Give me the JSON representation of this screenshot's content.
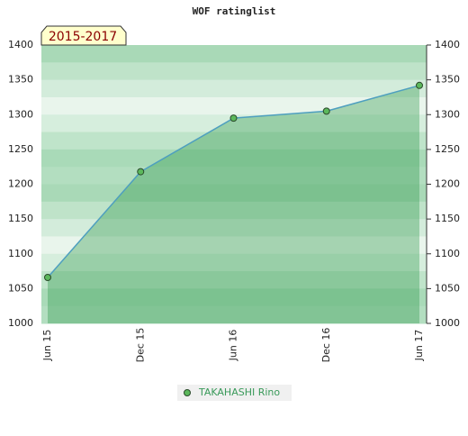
{
  "chart_data": {
    "type": "area",
    "title": "WOF ratinglist",
    "annotation": "2015-2017",
    "categories": [
      "Jun 15",
      "Dec 15",
      "Jun 16",
      "Dec 16",
      "Jun 17"
    ],
    "series": [
      {
        "name": "TAKAHASHI Rino",
        "color": "#4e9fbf",
        "values": [
          1066,
          1218,
          1295,
          1305,
          1342
        ]
      }
    ],
    "ylim": [
      1000,
      1400
    ],
    "yticks": [
      1000,
      1050,
      1100,
      1150,
      1200,
      1250,
      1300,
      1350,
      1400
    ]
  }
}
